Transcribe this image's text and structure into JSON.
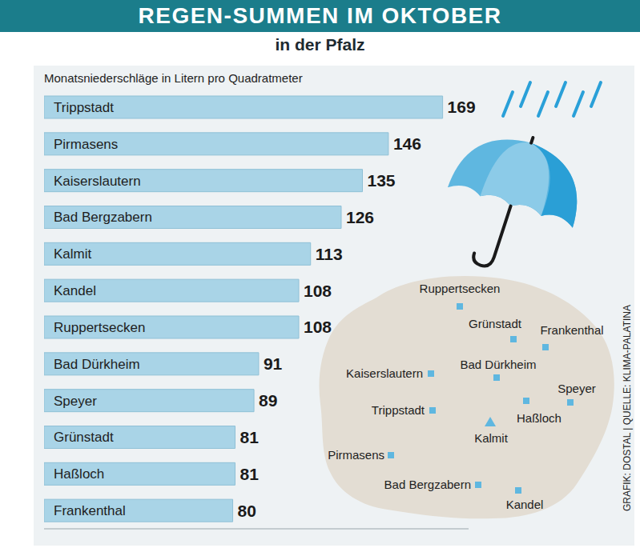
{
  "chart_data": {
    "type": "bar",
    "orientation": "horizontal",
    "title": "REGEN-SUMMEN IM OKTOBER",
    "subtitle": "in der Pfalz",
    "xlabel": "Monatsniederschläge in Litern pro Quadratmeter",
    "categories": [
      "Trippstadt",
      "Pirmasens",
      "Kaiserslautern",
      "Bad Bergzabern",
      "Kalmit",
      "Kandel",
      "Ruppertsecken",
      "Bad Dürkheim",
      "Speyer",
      "Grünstadt",
      "Haßloch",
      "Frankenthal"
    ],
    "values": [
      169,
      146,
      135,
      126,
      113,
      108,
      108,
      91,
      89,
      81,
      81,
      80
    ],
    "color": "#a9d4e7",
    "xlim": [
      0,
      180
    ],
    "xticks": [],
    "data_labels": true,
    "tick_labels": "y",
    "grid": false
  },
  "map": {
    "places": [
      {
        "name": "Ruppertsecken",
        "marker": "square"
      },
      {
        "name": "Grünstadt",
        "marker": "square"
      },
      {
        "name": "Frankenthal",
        "marker": "square"
      },
      {
        "name": "Kaiserslautern",
        "marker": "square"
      },
      {
        "name": "Bad Dürkheim",
        "marker": "square"
      },
      {
        "name": "Speyer",
        "marker": "square"
      },
      {
        "name": "Haßloch",
        "marker": "square"
      },
      {
        "name": "Trippstadt",
        "marker": "square"
      },
      {
        "name": "Kalmit",
        "marker": "triangle"
      },
      {
        "name": "Pirmasens",
        "marker": "square"
      },
      {
        "name": "Bad Bergzabern",
        "marker": "square"
      },
      {
        "name": "Kandel",
        "marker": "square"
      }
    ]
  },
  "credit": "GRAFIK: DOSTAL | QUELLE: KLIMA-PALATINA"
}
